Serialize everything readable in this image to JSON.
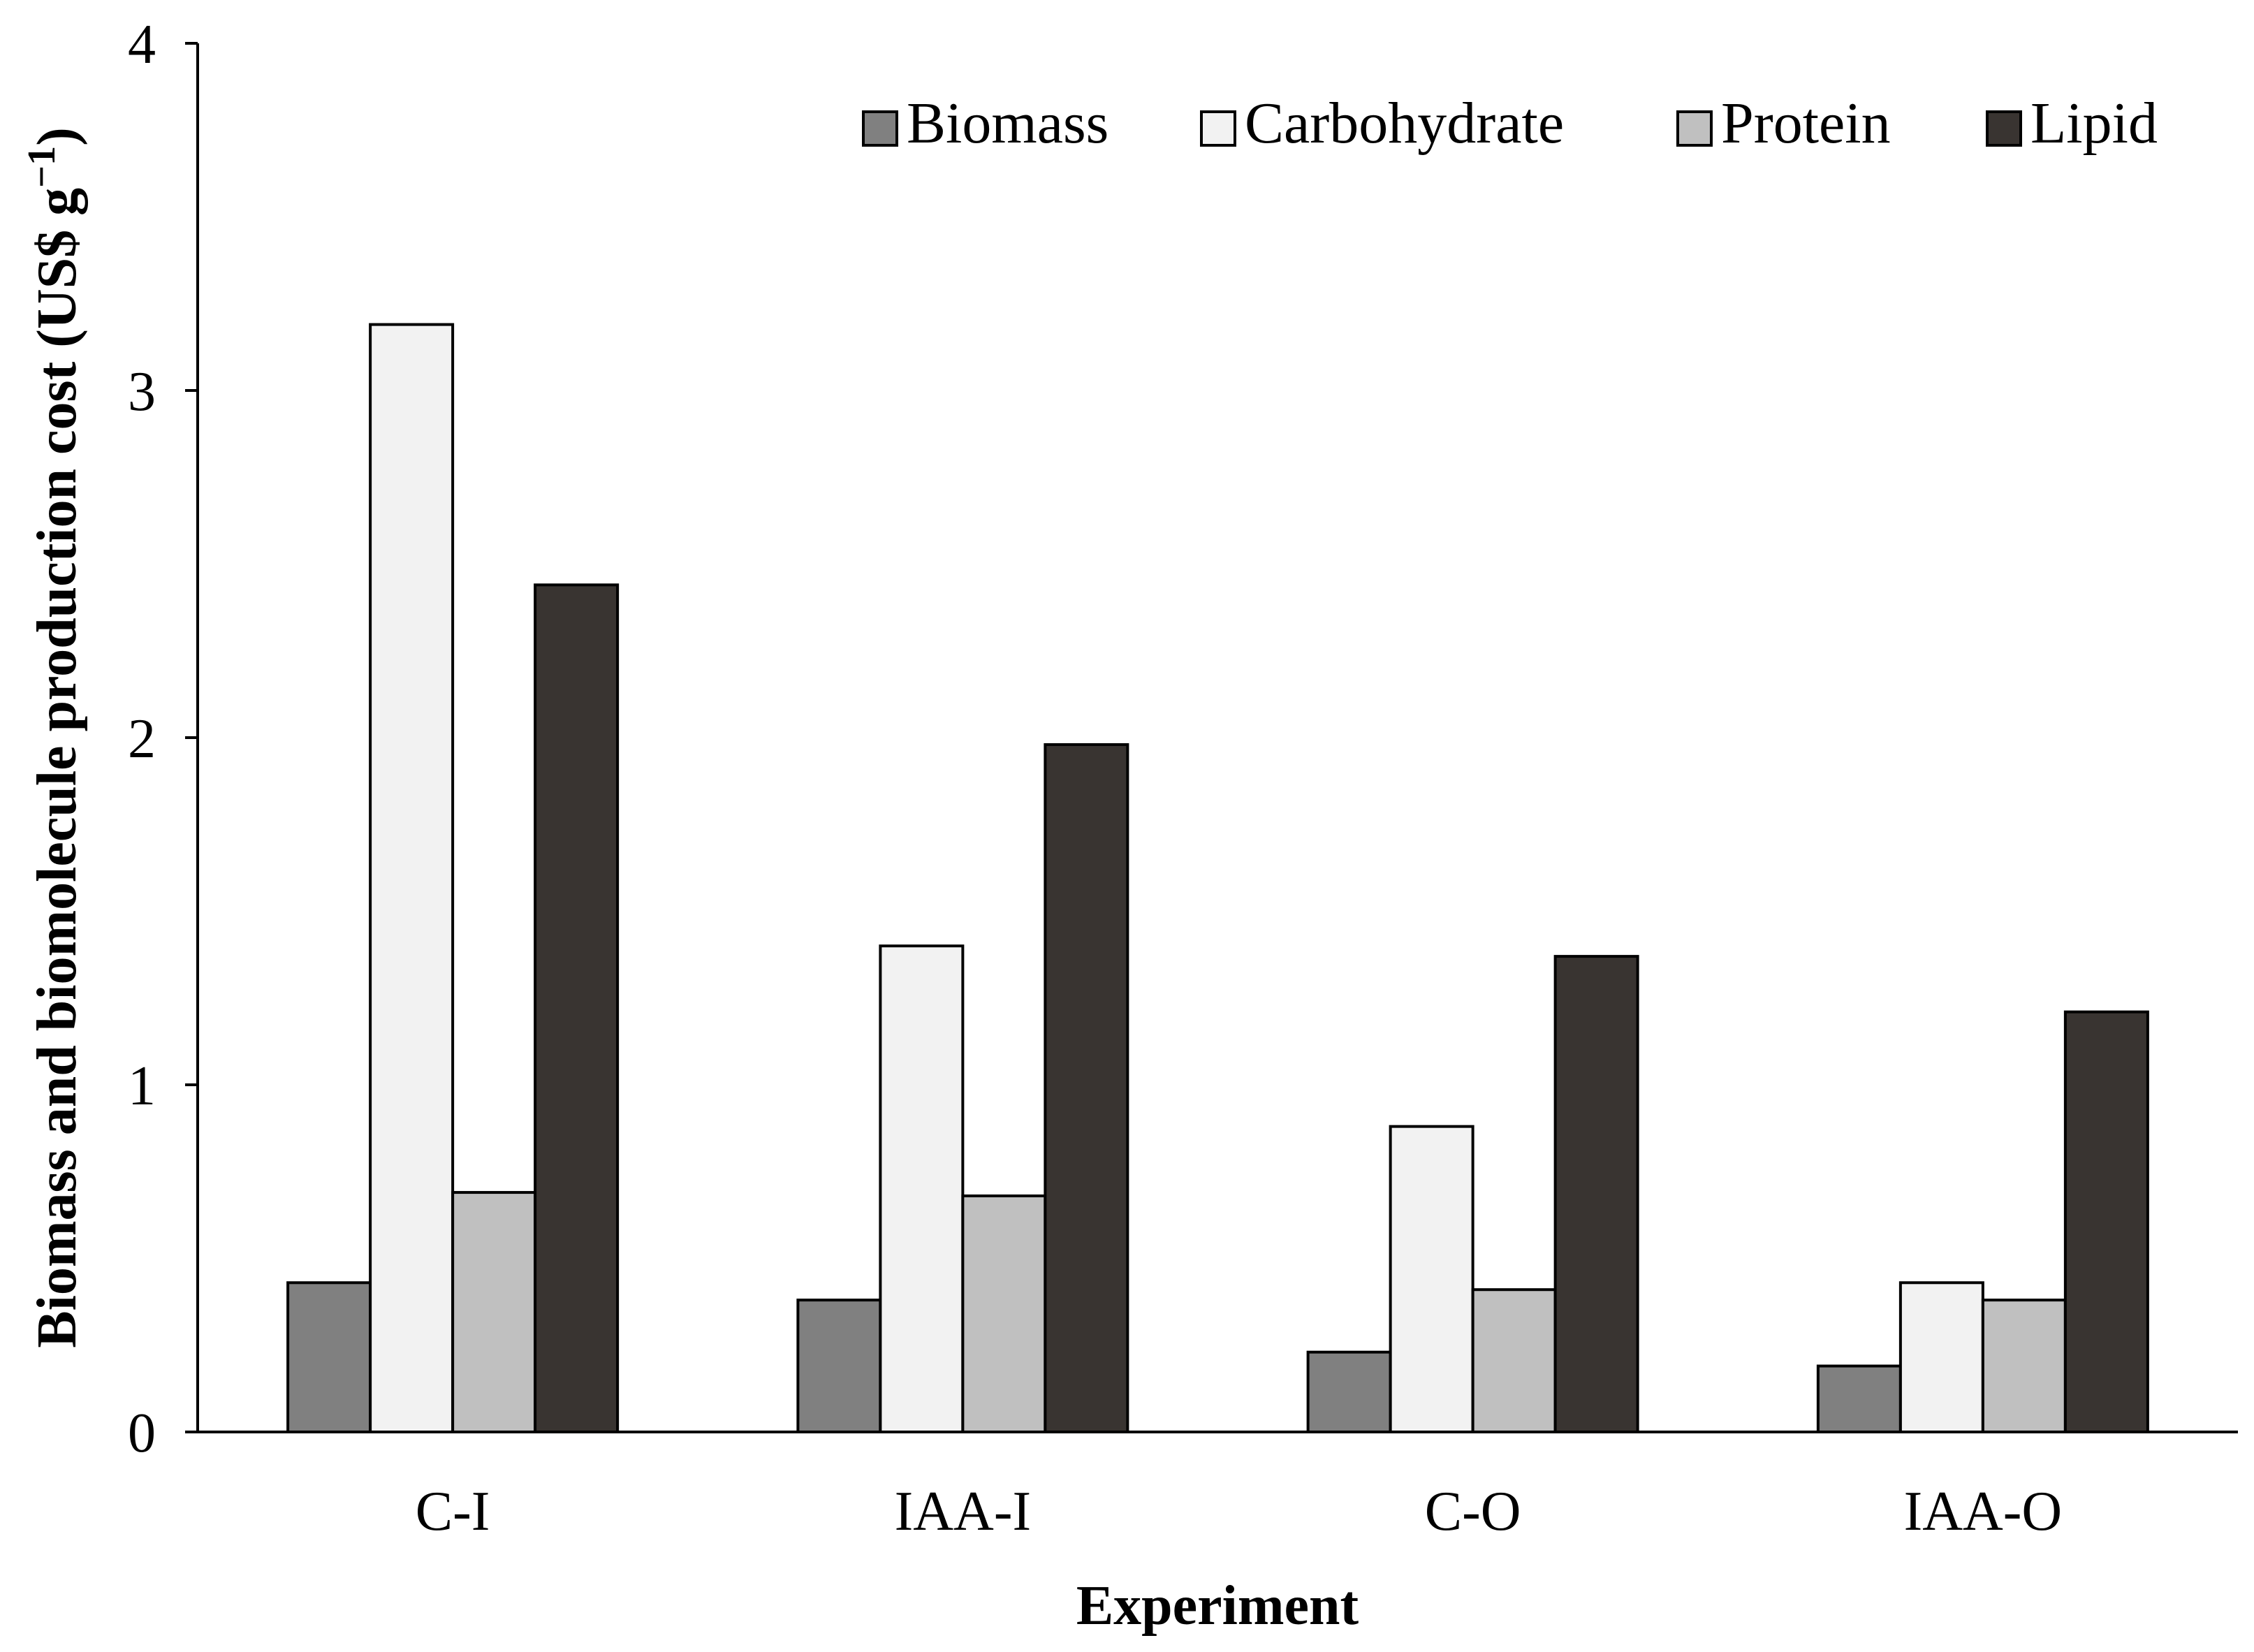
{
  "chart_data": {
    "type": "bar",
    "title": "",
    "xlabel": "Experiment",
    "ylabel_main": "Biomass and biomolecule production cost (US$ g",
    "ylabel_sup": "−1",
    "ylabel_close": ")",
    "ylim": [
      0,
      4
    ],
    "yticks": [
      0,
      1,
      2,
      3,
      4
    ],
    "ytick_labels": [
      "0",
      "1",
      "2",
      "3",
      "4"
    ],
    "grid": false,
    "legend_position": "top-right",
    "categories": [
      "C-I",
      "IAA-I",
      "C-O",
      "IAA-O"
    ],
    "series": [
      {
        "name": "Biomass",
        "color": "#808080",
        "values": [
          0.43,
          0.38,
          0.23,
          0.19
        ]
      },
      {
        "name": "Carbohydrate",
        "color": "#f2f2f2",
        "values": [
          3.19,
          1.4,
          0.88,
          0.43
        ]
      },
      {
        "name": "Protein",
        "color": "#c0c0c0",
        "values": [
          0.69,
          0.68,
          0.41,
          0.38
        ]
      },
      {
        "name": "Lipid",
        "color": "#393431",
        "values": [
          2.44,
          1.98,
          1.37,
          1.21
        ]
      }
    ]
  }
}
